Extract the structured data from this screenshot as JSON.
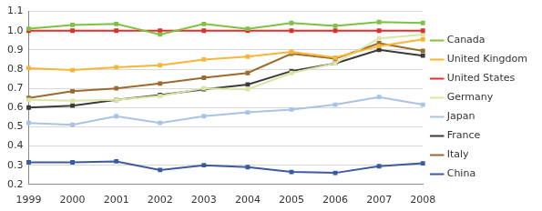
{
  "chart_data": {
    "type": "line",
    "categories": [
      "1999",
      "2000",
      "2001",
      "2002",
      "2003",
      "2004",
      "2005",
      "2006",
      "2007",
      "2008"
    ],
    "series": [
      {
        "name": "Canada",
        "color": "#7dc242",
        "values": [
          1.01,
          1.03,
          1.035,
          0.98,
          1.035,
          1.01,
          1.04,
          1.025,
          1.045,
          1.04
        ]
      },
      {
        "name": "United Kingdom",
        "color": "#f7b53a",
        "values": [
          0.805,
          0.795,
          0.81,
          0.82,
          0.85,
          0.865,
          0.89,
          0.86,
          0.92,
          0.955
        ]
      },
      {
        "name": "United States",
        "color": "#e0302e",
        "values": [
          1.0,
          1.0,
          1.0,
          1.0,
          1.0,
          1.0,
          1.0,
          1.0,
          1.0,
          1.0
        ]
      },
      {
        "name": "Germany",
        "color": "#dbe6a4",
        "values": [
          0.64,
          0.635,
          0.64,
          0.66,
          0.7,
          0.695,
          0.78,
          0.83,
          0.96,
          0.98
        ]
      },
      {
        "name": "Japan",
        "color": "#a8c3e6",
        "values": [
          0.52,
          0.51,
          0.555,
          0.52,
          0.555,
          0.575,
          0.59,
          0.615,
          0.655,
          0.615
        ]
      },
      {
        "name": "France",
        "color": "#3a3a3a",
        "values": [
          0.6,
          0.61,
          0.64,
          0.665,
          0.695,
          0.72,
          0.79,
          0.83,
          0.9,
          0.87
        ]
      },
      {
        "name": "Italy",
        "color": "#9b6a2e",
        "values": [
          0.65,
          0.685,
          0.7,
          0.725,
          0.755,
          0.78,
          0.88,
          0.855,
          0.935,
          0.895
        ]
      },
      {
        "name": "China",
        "color": "#3b5a9f",
        "values": [
          0.315,
          0.315,
          0.32,
          0.275,
          0.3,
          0.29,
          0.265,
          0.26,
          0.295,
          0.31
        ]
      }
    ],
    "ylim": [
      0.2,
      1.1
    ],
    "yticks": [
      0.2,
      0.3,
      0.4,
      0.5,
      0.6,
      0.7,
      0.8,
      0.9,
      {
        "value": 1,
        "label": "1.0"
      },
      1.1
    ],
    "grid": true,
    "legend": "right"
  }
}
